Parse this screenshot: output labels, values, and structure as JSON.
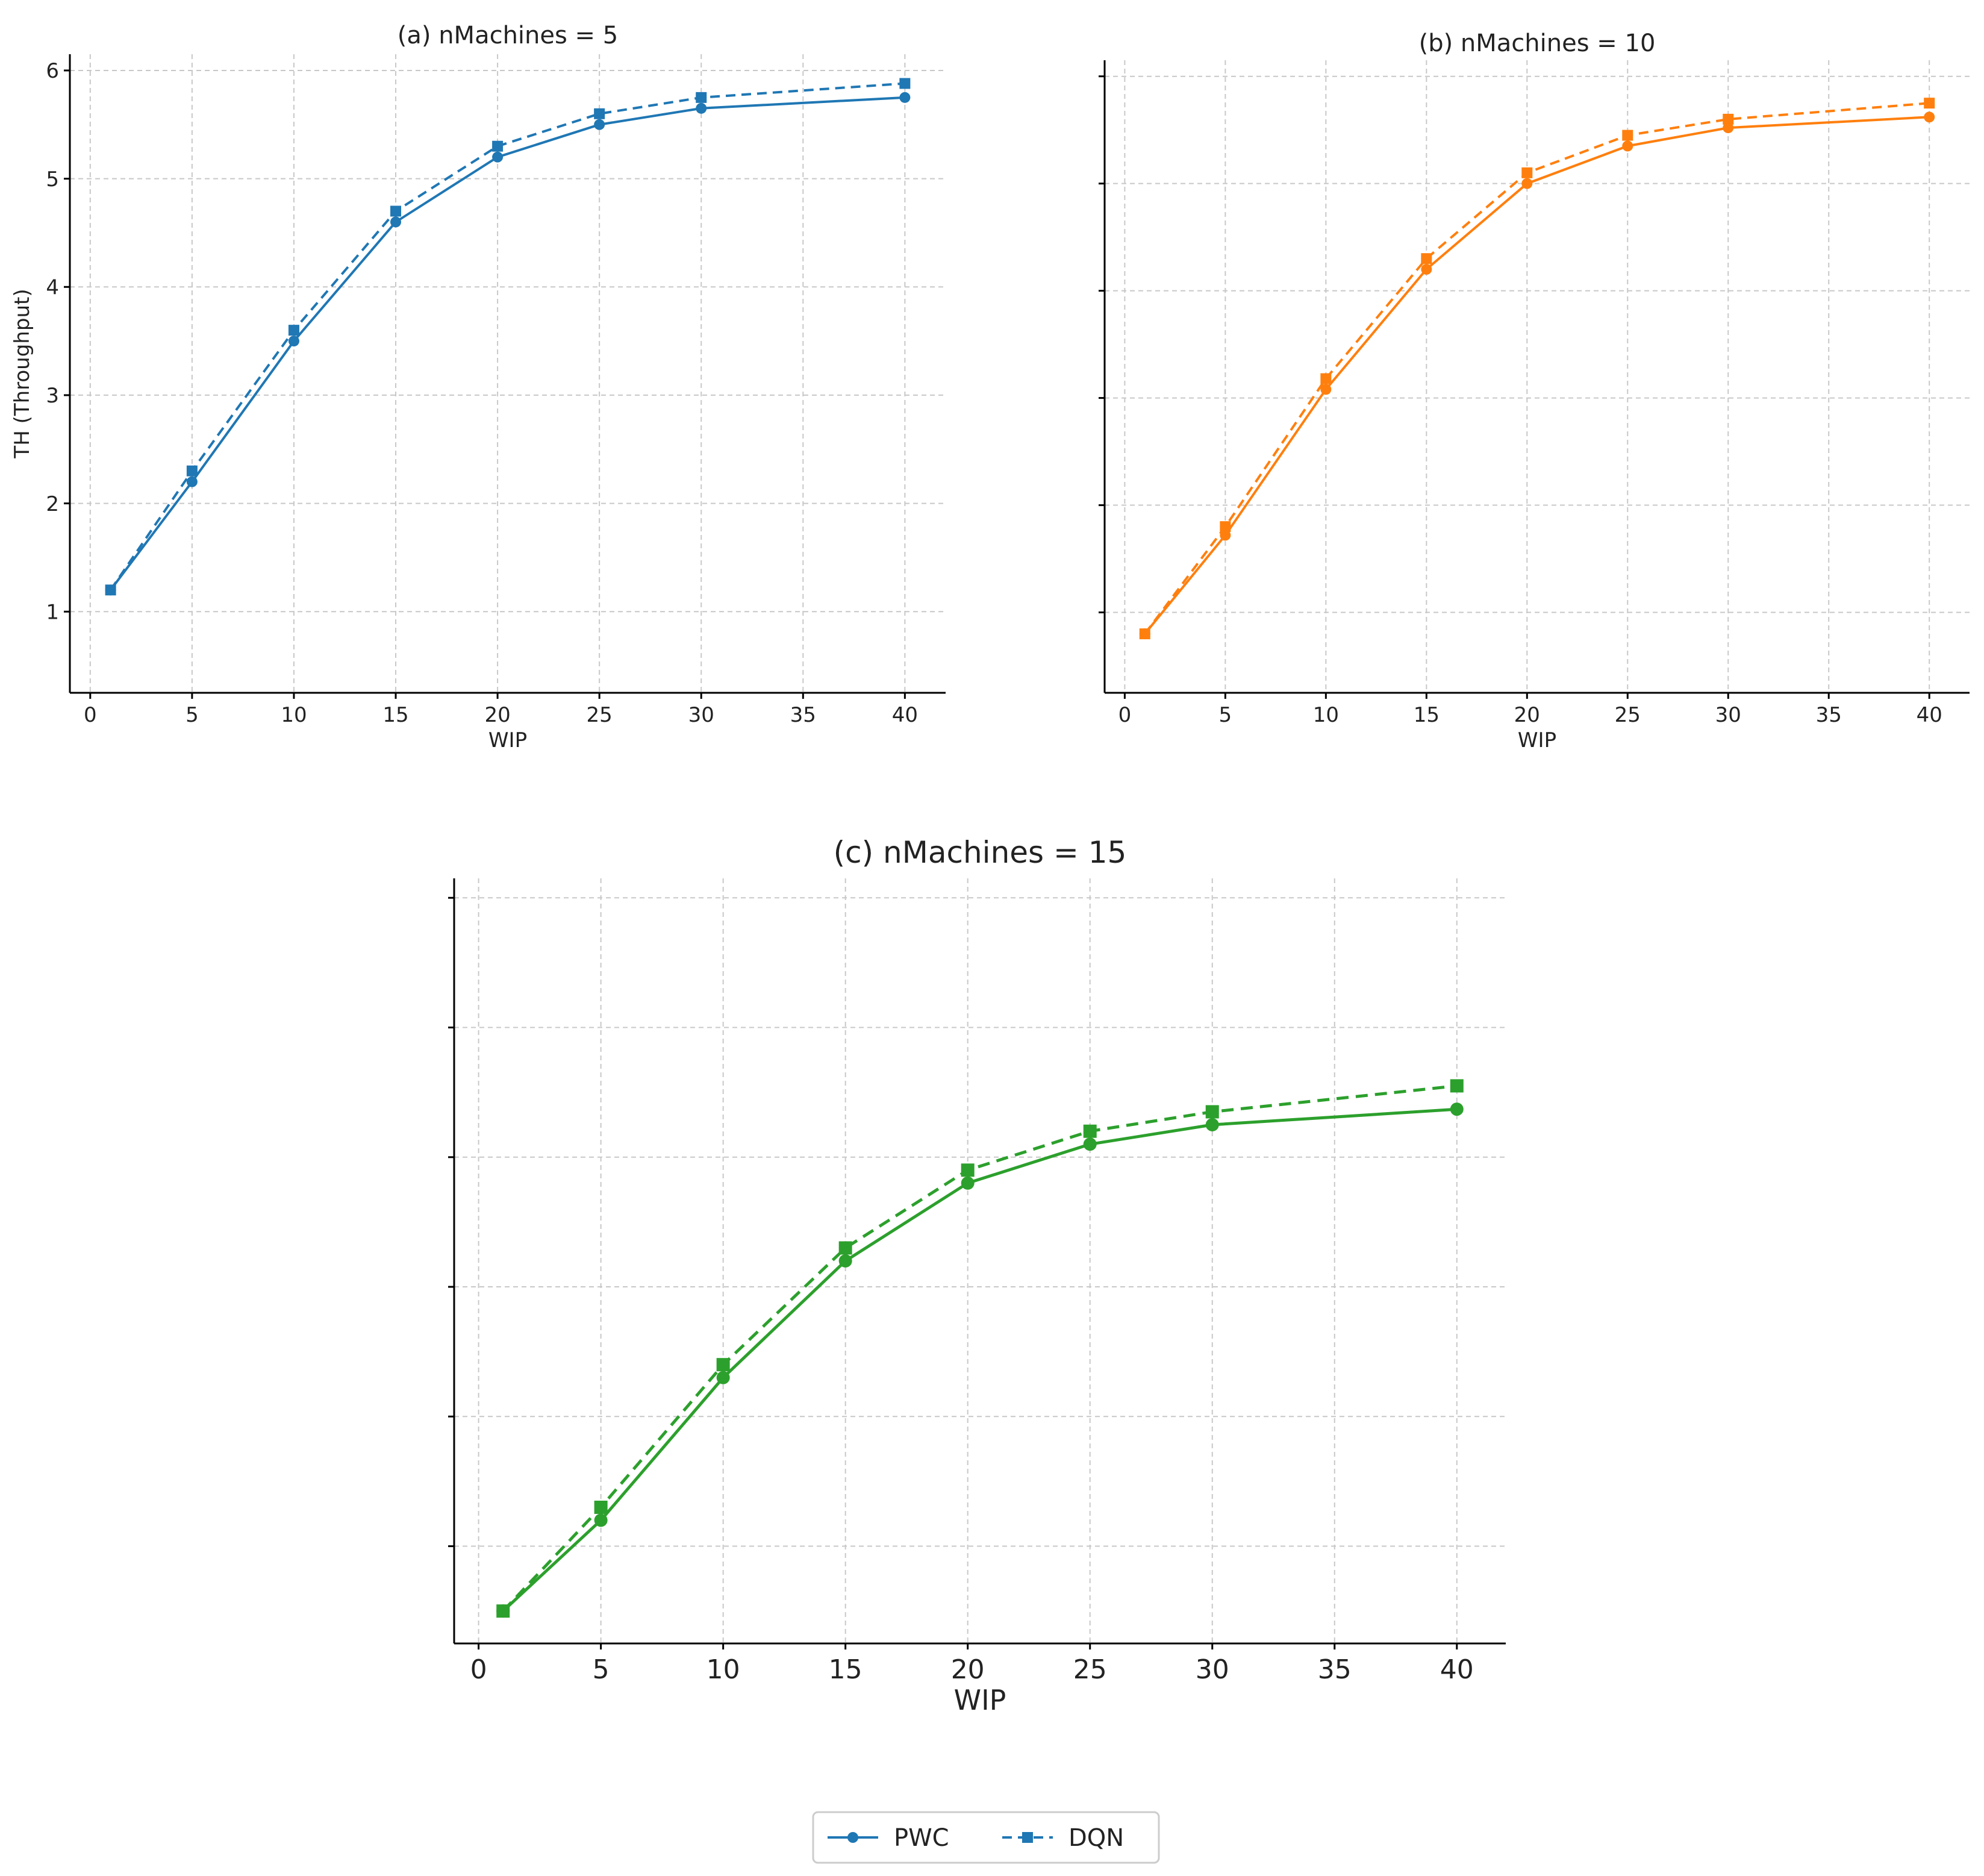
{
  "chart_data": [
    {
      "type": "line",
      "title": "(a) nMachines = 5",
      "xlabel": "WIP",
      "ylabel": "TH (Throughput)",
      "x": [
        1,
        5,
        10,
        15,
        20,
        25,
        30,
        40
      ],
      "xticks": [
        0,
        5,
        10,
        15,
        20,
        25,
        30,
        35,
        40
      ],
      "yticks": [
        1,
        2,
        3,
        4,
        5,
        6
      ],
      "xlim": [
        -1,
        42
      ],
      "ylim": [
        0.25,
        6.15
      ],
      "color": "#1f77b4",
      "grid": true,
      "series": [
        {
          "values": [
            1.2,
            2.2,
            3.5,
            4.6,
            5.2,
            5.5,
            5.65,
            5.75
          ]
        },
        {
          "values": [
            1.2,
            2.3,
            3.6,
            4.7,
            5.3,
            5.6,
            5.75,
            5.88
          ]
        }
      ]
    },
    {
      "type": "line",
      "title": "(b) nMachines = 10",
      "xlabel": "WIP",
      "ylabel": "",
      "x": [
        1,
        5,
        10,
        15,
        20,
        25,
        30,
        40
      ],
      "xticks": [
        0,
        5,
        10,
        15,
        20,
        25,
        30,
        35,
        40
      ],
      "yticks": [
        1,
        2,
        3,
        4,
        5,
        6
      ],
      "ytick_labels_visible": false,
      "xlim": [
        -1,
        42
      ],
      "ylim": [
        0.25,
        6.15
      ],
      "color": "#ff7f0e",
      "grid": true,
      "series": [
        {
          "values": [
            0.8,
            1.72,
            3.08,
            4.2,
            5.0,
            5.35,
            5.52,
            5.62
          ]
        },
        {
          "values": [
            0.8,
            1.8,
            3.18,
            4.3,
            5.1,
            5.45,
            5.6,
            5.75
          ]
        }
      ]
    },
    {
      "type": "line",
      "title": "(c) nMachines = 15",
      "xlabel": "WIP",
      "ylabel": "",
      "x": [
        1,
        5,
        10,
        15,
        20,
        25,
        30,
        40
      ],
      "xticks": [
        0,
        5,
        10,
        15,
        20,
        25,
        30,
        35,
        40
      ],
      "yticks": [
        1,
        2,
        3,
        4,
        5,
        6
      ],
      "ytick_labels_visible": false,
      "xlim": [
        -1,
        42
      ],
      "ylim": [
        0.25,
        6.15
      ],
      "color": "#2ca02c",
      "grid": true,
      "series": [
        {
          "values": [
            0.5,
            1.2,
            2.3,
            3.2,
            3.8,
            4.1,
            4.25,
            4.37
          ]
        },
        {
          "values": [
            0.5,
            1.3,
            2.4,
            3.3,
            3.9,
            4.2,
            4.35,
            4.55
          ]
        }
      ]
    }
  ],
  "legend": {
    "placement": "bottom-center",
    "entries": [
      {
        "name": "PWC",
        "linestyle": "solid",
        "marker": "circle",
        "color": "#1f77b4"
      },
      {
        "name": "DQN",
        "linestyle": "dashed",
        "marker": "square",
        "color": "#1f77b4"
      }
    ]
  }
}
